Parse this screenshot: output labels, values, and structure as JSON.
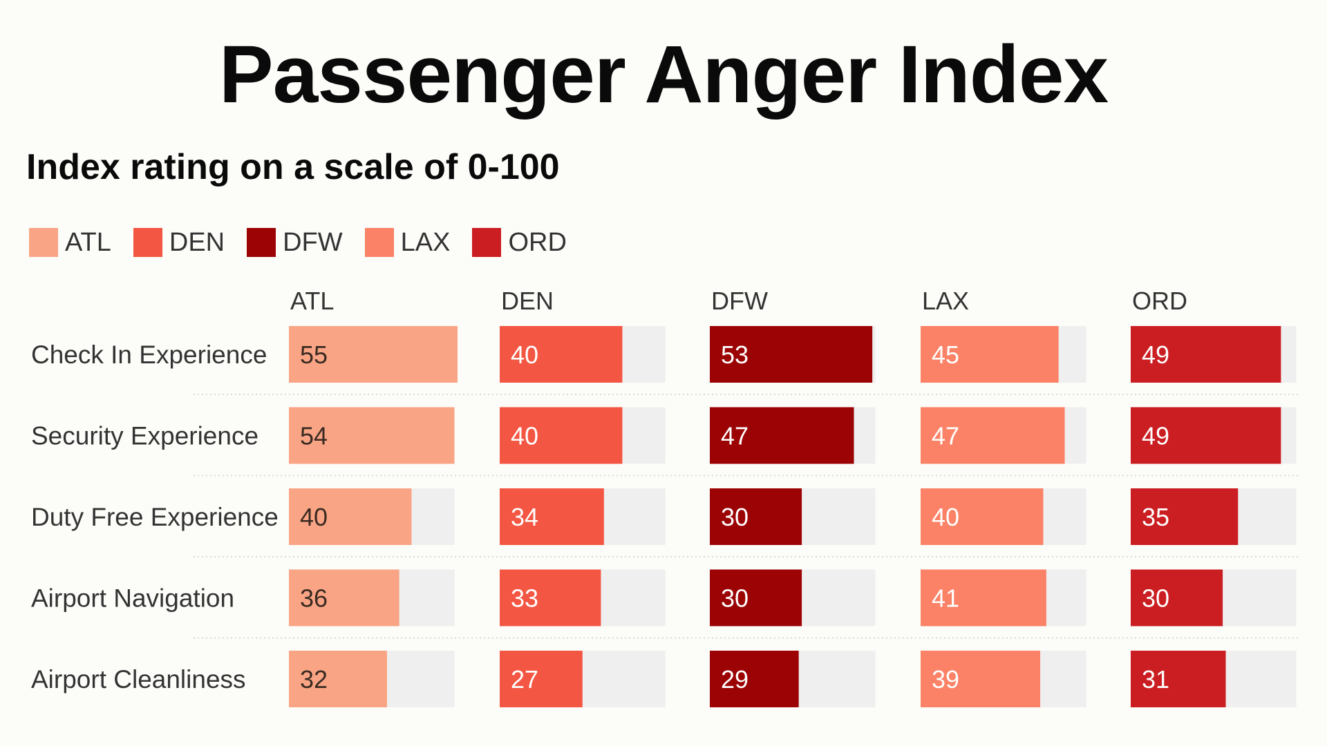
{
  "chart_data": {
    "type": "bar",
    "title": "Passenger Anger Index",
    "subtitle": "Index rating on a scale of 0-100",
    "xlim": [
      0,
      100
    ],
    "categories": [
      "Check In Experience",
      "Security Experience",
      "Duty Free Experience",
      "Airport Navigation",
      "Airport Cleanliness"
    ],
    "series": [
      {
        "name": "ATL",
        "color": "#f9a585",
        "label_color": "#3a2a22",
        "values": [
          55,
          54,
          40,
          36,
          32
        ]
      },
      {
        "name": "DEN",
        "color": "#f35642",
        "label_color": "#ffffff",
        "values": [
          40,
          40,
          34,
          33,
          27
        ]
      },
      {
        "name": "DFW",
        "color": "#9b0305",
        "label_color": "#ffffff",
        "values": [
          53,
          47,
          30,
          30,
          29
        ]
      },
      {
        "name": "LAX",
        "color": "#fb8266",
        "label_color": "#ffffff",
        "values": [
          45,
          47,
          40,
          41,
          39
        ]
      },
      {
        "name": "ORD",
        "color": "#cb1e22",
        "label_color": "#ffffff",
        "values": [
          49,
          49,
          35,
          30,
          31
        ]
      }
    ],
    "legend_position": "top-left",
    "track_color": "#efefef"
  }
}
